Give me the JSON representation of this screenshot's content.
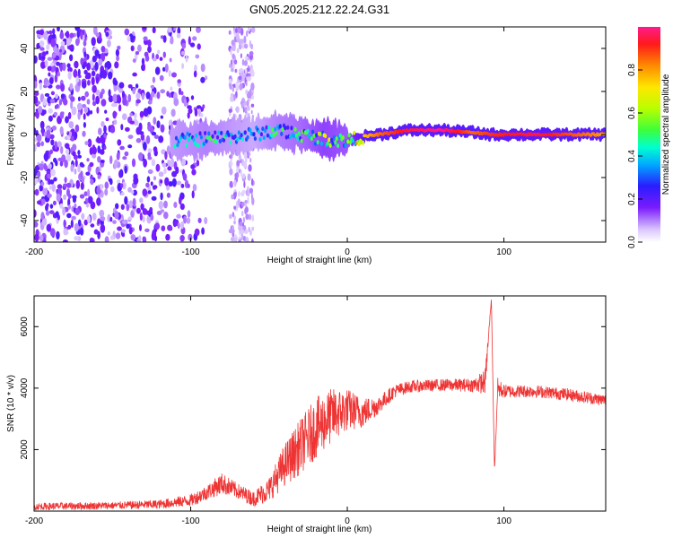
{
  "title": "GN05.2025.212.22.24.G31",
  "chart_data": [
    {
      "type": "heatmap",
      "xlabel": "Height of straight line (km)",
      "ylabel": "Frequency (Hz)",
      "xlim": [
        -200,
        165
      ],
      "ylim": [
        -50,
        50
      ],
      "xticks": [
        -200,
        -100,
        0,
        100
      ],
      "yticks": [
        -40,
        -20,
        0,
        20,
        40
      ],
      "colorbar": {
        "label": "Normalized spectral amplitude",
        "range": [
          0,
          1
        ],
        "ticks": [
          "0.0",
          "0.2",
          "0.4",
          "0.6",
          "0.8"
        ]
      },
      "ridge": [
        {
          "x": -110,
          "freq": -3,
          "amp": 0.35
        },
        {
          "x": -90,
          "freq": -2,
          "amp": 0.4
        },
        {
          "x": -75,
          "freq": -1,
          "amp": 0.35
        },
        {
          "x": -60,
          "freq": 0,
          "amp": 0.3
        },
        {
          "x": -45,
          "freq": 2,
          "amp": 0.4
        },
        {
          "x": -30,
          "freq": 0,
          "amp": 0.45
        },
        {
          "x": -15,
          "freq": -2,
          "amp": 0.55
        },
        {
          "x": 0,
          "freq": -3,
          "amp": 0.5
        },
        {
          "x": 10,
          "freq": -1,
          "amp": 0.75
        },
        {
          "x": 20,
          "freq": 0,
          "amp": 0.85
        },
        {
          "x": 40,
          "freq": 2,
          "amp": 0.95
        },
        {
          "x": 60,
          "freq": 2,
          "amp": 1.0
        },
        {
          "x": 80,
          "freq": 1,
          "amp": 0.85
        },
        {
          "x": 92,
          "freq": 0,
          "amp": 0.9
        },
        {
          "x": 120,
          "freq": 0,
          "amp": 0.95
        },
        {
          "x": 165,
          "freq": 0,
          "amp": 0.8
        }
      ]
    },
    {
      "type": "line",
      "xlabel": "Height of straight line (km)",
      "ylabel": "SNR (10 * v/v)",
      "xlim": [
        -200,
        165
      ],
      "ylim": [
        0,
        7000
      ],
      "xticks": [
        -200,
        -100,
        0,
        100
      ],
      "yticks": [
        2000,
        4000,
        6000
      ],
      "color": "#ee3333",
      "series": [
        {
          "x": [
            -200,
            -150,
            -120,
            -100,
            -90,
            -80,
            -70,
            -60,
            -50,
            -40,
            -30,
            -20,
            -10,
            0,
            10,
            20,
            30,
            40,
            60,
            80,
            88,
            92,
            94,
            96,
            100,
            120,
            140,
            165
          ],
          "y": [
            150,
            180,
            220,
            350,
            600,
            900,
            650,
            400,
            700,
            1500,
            2100,
            2700,
            3100,
            3300,
            3200,
            3450,
            3900,
            4050,
            4100,
            4100,
            4200,
            6900,
            1300,
            4000,
            3900,
            3900,
            3800,
            3600
          ],
          "spread": [
            120,
            120,
            150,
            200,
            250,
            350,
            250,
            250,
            400,
            700,
            900,
            1000,
            900,
            700,
            500,
            300,
            220,
            200,
            200,
            220,
            400,
            0,
            0,
            350,
            220,
            200,
            200,
            200
          ]
        }
      ]
    }
  ]
}
